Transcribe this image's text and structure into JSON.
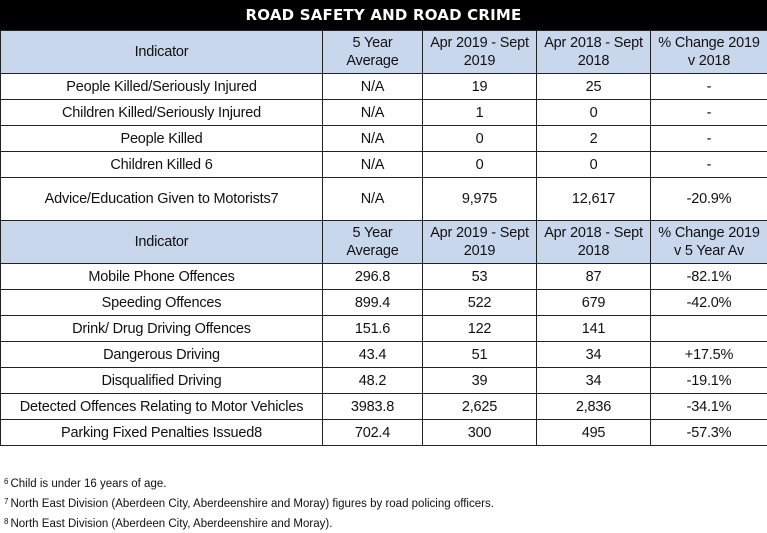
{
  "title": "ROAD SAFETY AND ROAD CRIME",
  "table1": {
    "headers": [
      "Indicator",
      "5 Year Average",
      "Apr 2019 - Sept 2019",
      "Apr 2018 - Sept 2018",
      "% Change 2019 v 2018"
    ],
    "rows": [
      [
        "People Killed/Seriously Injured",
        "N/A",
        "19",
        "25",
        "-"
      ],
      [
        "Children Killed/Seriously Injured",
        "N/A",
        "1",
        "0",
        "-"
      ],
      [
        "People Killed",
        "N/A",
        "0",
        "2",
        "-"
      ],
      [
        "Children Killed 6",
        "N/A",
        "0",
        "0",
        "-"
      ],
      [
        "Advice/Education Given to Motorists7",
        "N/A",
        "9,975",
        "12,617",
        "-20.9%"
      ]
    ]
  },
  "table2": {
    "headers": [
      "Indicator",
      "5 Year Average",
      "Apr 2019 - Sept 2019",
      "Apr 2018 - Sept 2018",
      "% Change 2019 v 5 Year Av"
    ],
    "rows": [
      [
        "Mobile Phone Offences",
        "296.8",
        "53",
        "87",
        "-82.1%"
      ],
      [
        "Speeding Offences",
        "899.4",
        "522",
        "679",
        "-42.0%"
      ],
      [
        "Drink/ Drug Driving Offences",
        "151.6",
        "122",
        "141",
        ""
      ],
      [
        "Dangerous Driving",
        "43.4",
        "51",
        "34",
        "+17.5%"
      ],
      [
        "Disqualified Driving",
        "48.2",
        "39",
        "34",
        "-19.1%"
      ],
      [
        "Detected Offences Relating to Motor Vehicles",
        "3983.8",
        "2,625",
        "2,836",
        "-34.1%"
      ],
      [
        "Parking Fixed Penalties Issued8",
        "702.4",
        "300",
        "495",
        "-57.3%"
      ]
    ]
  },
  "footnotes": [
    {
      "num": "6",
      "text": "Child is under 16 years of age."
    },
    {
      "num": "7",
      "text": "North East Division (Aberdeen City, Aberdeenshire and Moray) figures by road policing officers."
    },
    {
      "num": "8",
      "text": "North East Division (Aberdeen City, Aberdeenshire and Moray)."
    }
  ]
}
